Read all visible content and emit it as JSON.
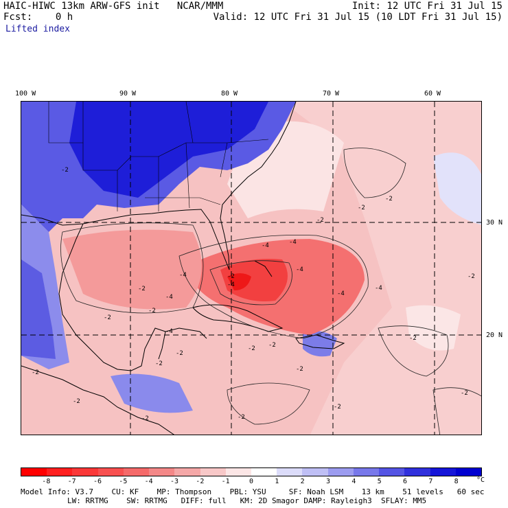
{
  "header": {
    "title": "HAIC-HIWC 13km ARW-GFS init   NCAR/MMM",
    "init": "Init: 12 UTC Fri 31 Jul 15",
    "fcst": "Fcst:    0 h",
    "valid": "Valid: 12 UTC Fri 31 Jul 15 (10 LDT Fri 31 Jul 15)",
    "field": "Lifted index"
  },
  "map": {
    "lon_labels": [
      "100 W",
      "90 W",
      "80 W",
      "70 W",
      "60 W"
    ],
    "lat_labels": [
      "30 N",
      "20 N"
    ],
    "contour_labels": [
      "-2",
      "-2",
      "-2",
      "-2",
      "-2",
      "-2",
      "-2",
      "-2",
      "-2",
      "-2",
      "-2",
      "-2",
      "-2",
      "-2",
      "-2",
      "-2",
      "-2",
      "-4",
      "-4",
      "-4",
      "-4",
      "-4",
      "-4",
      "-4",
      "-4",
      "-4",
      "-2",
      "-2",
      "-2",
      "-2"
    ]
  },
  "colorbar": {
    "ticks": [
      "-8",
      "-7",
      "-6",
      "-5",
      "-4",
      "-3",
      "-2",
      "-1",
      "0",
      "1",
      "2",
      "3",
      "4",
      "5",
      "6",
      "7",
      "8"
    ],
    "unit": "°C",
    "colors": [
      "#ff0000",
      "#ff2020",
      "#fb3838",
      "#f85050",
      "#f56a6a",
      "#f48888",
      "#f5a8a8",
      "#f8c8c8",
      "#fce6e6",
      "#ffffff",
      "#dcdcfa",
      "#bfbff5",
      "#9c9cf0",
      "#7878ea",
      "#5454e4",
      "#3030dc",
      "#1515d8",
      "#0000d0"
    ]
  },
  "footer": {
    "line1": "Model Info: V3.7    CU: KF    MP: Thompson    PBL: YSU     SF: Noah LSM    13 km    51 levels   60 sec",
    "line2": "LW: RRTMG    SW: RRTMG   DIFF: full   KM: 2D Smagor DAMP: Rayleigh3  SFLAY: MM5"
  }
}
